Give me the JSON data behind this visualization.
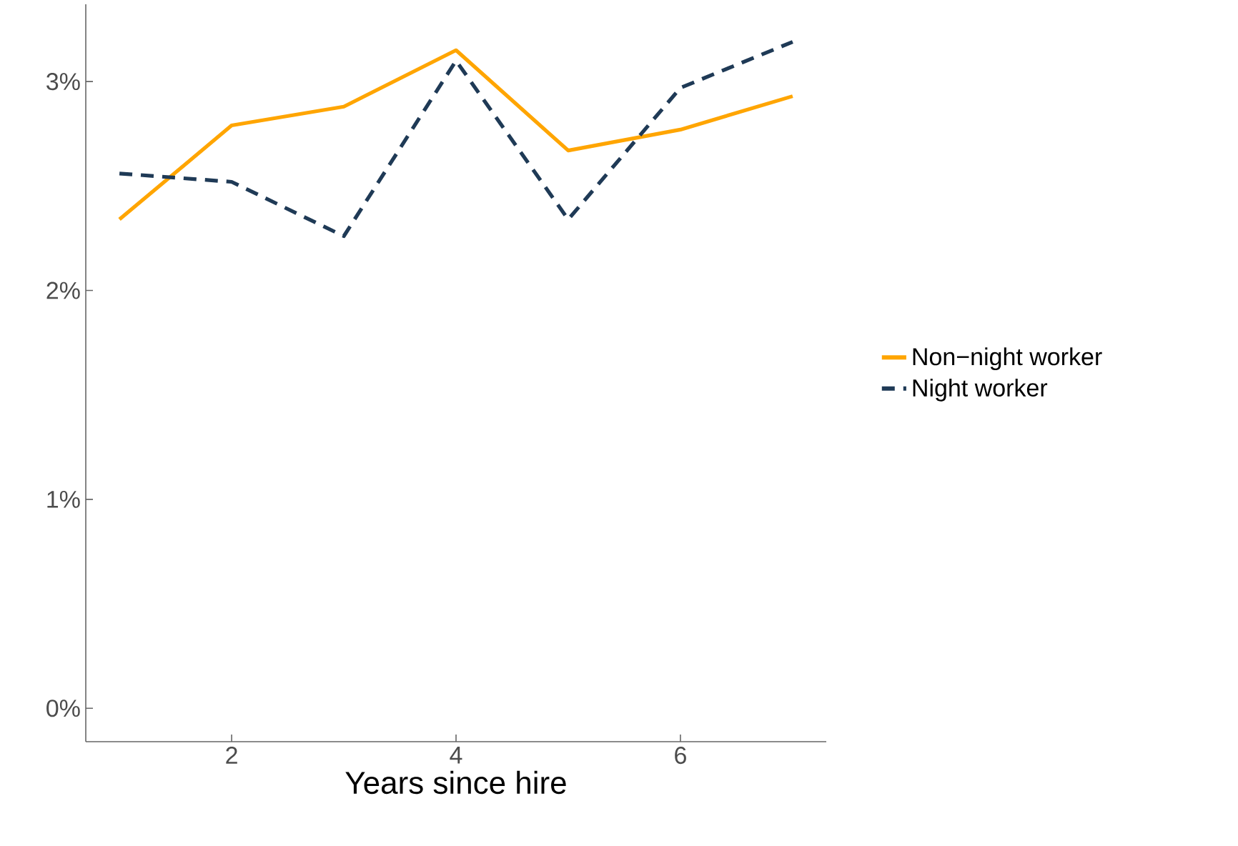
{
  "chart_data": {
    "type": "line",
    "xlabel": "Years since hire",
    "x": [
      1,
      2,
      3,
      4,
      5,
      6,
      7
    ],
    "series": [
      {
        "name": "Non−night worker",
        "color": "#ffa500",
        "line_style": "solid",
        "values": [
          2.34,
          2.79,
          2.88,
          3.15,
          2.67,
          2.77,
          2.93
        ]
      },
      {
        "name": "Night worker",
        "color": "#1f3a56",
        "line_style": "dashed",
        "values": [
          2.56,
          2.52,
          2.26,
          3.1,
          2.34,
          2.97,
          3.19
        ]
      }
    ],
    "xlim": [
      0.7,
      7.3
    ],
    "ylim": [
      -0.16,
      3.37
    ],
    "xticks": [
      2,
      4,
      6
    ],
    "yticks": [
      {
        "value": 0,
        "label": "0%"
      },
      {
        "value": 1,
        "label": "1%"
      },
      {
        "value": 2,
        "label": "2%"
      },
      {
        "value": 3,
        "label": "3%"
      }
    ],
    "grid": false,
    "legend": "right"
  }
}
